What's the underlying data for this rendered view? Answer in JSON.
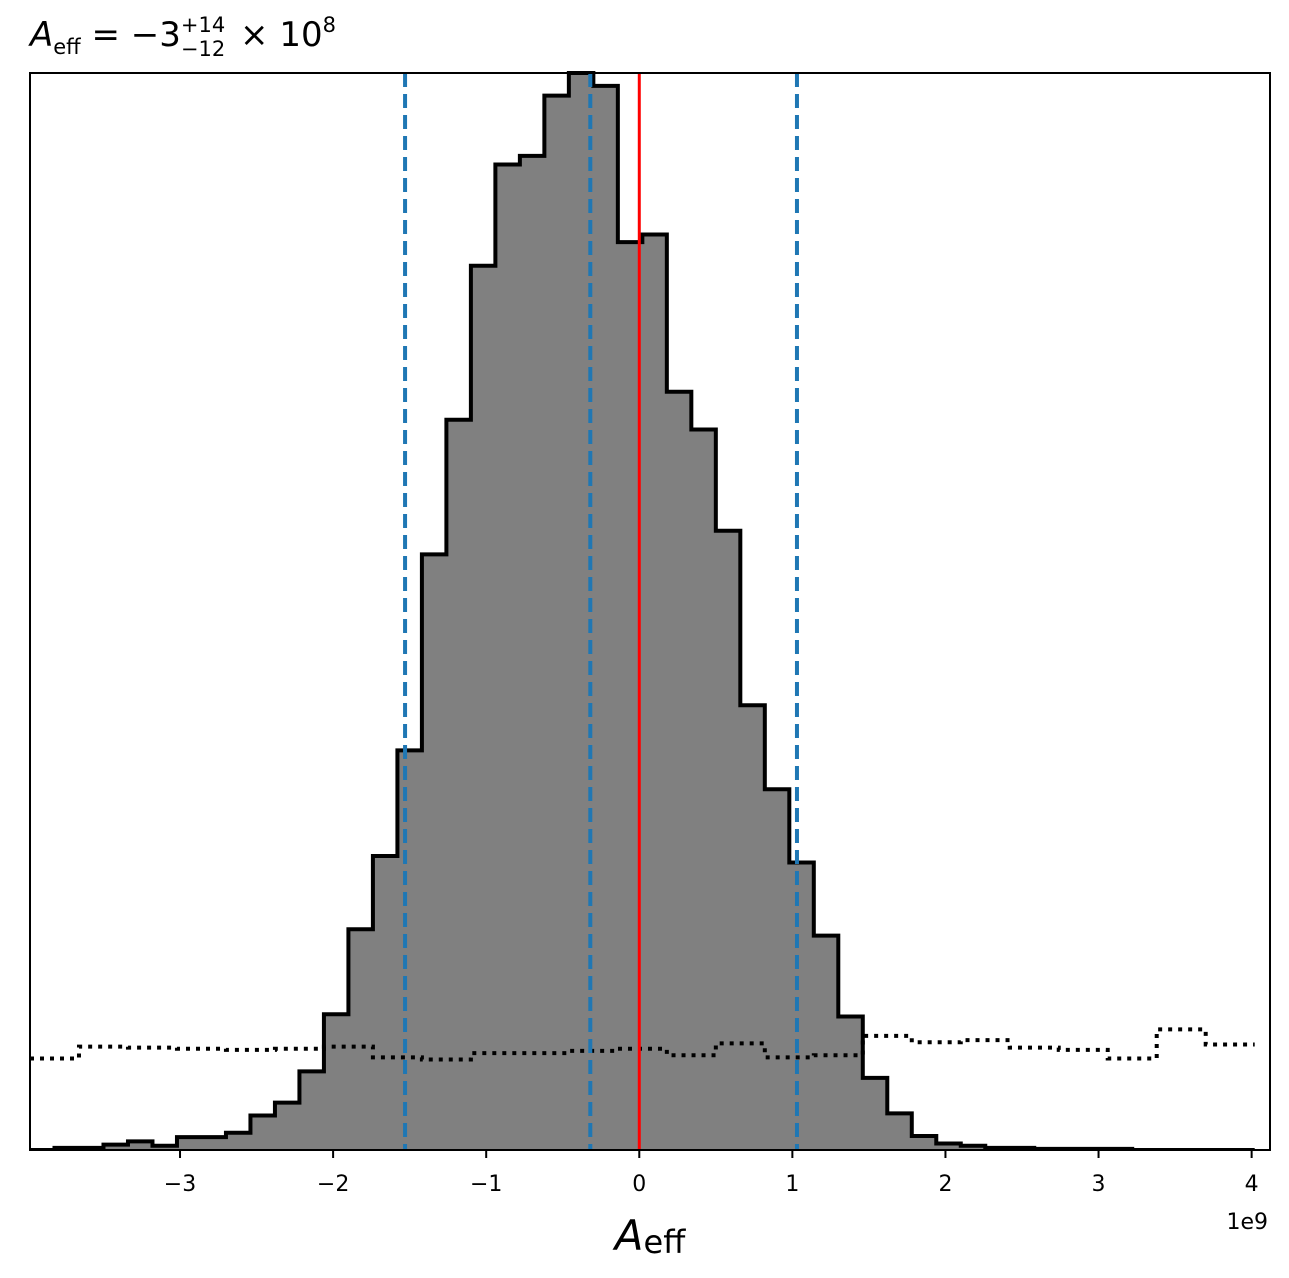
{
  "chart_data": {
    "type": "histogram",
    "title": {
      "symbol": "A",
      "symbol_sub": "eff",
      "equals": " = ",
      "value": "−3",
      "sup": "+14",
      "sub": "−12",
      "times": " × 10",
      "exponent": "8"
    },
    "xlabel": {
      "symbol": "A",
      "sub": "eff"
    },
    "offset_label": "1e9",
    "xlim": [
      -3.98,
      4.12
    ],
    "ylim": [
      0,
      1.0
    ],
    "xticks": [
      -3,
      -2,
      -1,
      0,
      1,
      2,
      3,
      4
    ],
    "xtick_labels": [
      "−3",
      "−2",
      "−1",
      "0",
      "1",
      "2",
      "3",
      "4"
    ],
    "yaxis_visible": false,
    "grid": false,
    "posterior": {
      "name": "",
      "fill": "#808080",
      "edge": "#000000",
      "bin_edges": [
        -3.98,
        -3.82,
        -3.66,
        -3.5,
        -3.34,
        -3.18,
        -3.02,
        -2.86,
        -2.7,
        -2.54,
        -2.38,
        -2.22,
        -2.06,
        -1.9,
        -1.74,
        -1.58,
        -1.42,
        -1.26,
        -1.1,
        -0.94,
        -0.78,
        -0.62,
        -0.46,
        -0.3,
        -0.14,
        0.02,
        0.18,
        0.34,
        0.5,
        0.66,
        0.82,
        0.98,
        1.14,
        1.3,
        1.46,
        1.62,
        1.78,
        1.94,
        2.1,
        2.26,
        2.42,
        2.58,
        2.74,
        2.9,
        3.06,
        3.22,
        3.38,
        3.54,
        3.7,
        3.86,
        4.02
      ],
      "heights": [
        0.0,
        0.002,
        0.002,
        0.005,
        0.008,
        0.004,
        0.012,
        0.012,
        0.016,
        0.032,
        0.044,
        0.073,
        0.126,
        0.205,
        0.273,
        0.371,
        0.553,
        0.678,
        0.821,
        0.915,
        0.923,
        0.979,
        1.0,
        0.988,
        0.843,
        0.85,
        0.704,
        0.669,
        0.575,
        0.413,
        0.335,
        0.267,
        0.199,
        0.124,
        0.067,
        0.034,
        0.013,
        0.006,
        0.004,
        0.002,
        0.002,
        0.001,
        0.001,
        0.001,
        0.001,
        0.0,
        0.0,
        0.0,
        0.0,
        0.0
      ]
    },
    "prior": {
      "name": "",
      "style": "dotted",
      "color": "#000000",
      "bin_edges": [
        -3.98,
        -3.66,
        -3.34,
        -3.02,
        -2.7,
        -2.38,
        -2.06,
        -1.74,
        -1.42,
        -1.1,
        -0.78,
        -0.46,
        -0.14,
        0.18,
        0.5,
        0.82,
        1.14,
        1.46,
        1.78,
        2.1,
        2.42,
        2.74,
        3.06,
        3.38,
        3.7,
        4.02
      ],
      "heights": [
        0.085,
        0.096,
        0.095,
        0.094,
        0.093,
        0.094,
        0.096,
        0.086,
        0.084,
        0.09,
        0.09,
        0.092,
        0.094,
        0.088,
        0.099,
        0.086,
        0.088,
        0.106,
        0.1,
        0.102,
        0.095,
        0.093,
        0.085,
        0.112,
        0.098
      ]
    },
    "vlines": [
      {
        "x": -1.53,
        "color": "#1f77b4",
        "style": "dashed"
      },
      {
        "x": -0.32,
        "color": "#1f77b4",
        "style": "dashed"
      },
      {
        "x": 1.03,
        "color": "#1f77b4",
        "style": "dashed"
      },
      {
        "x": 0.0,
        "color": "#ff0000",
        "style": "solid"
      }
    ]
  }
}
